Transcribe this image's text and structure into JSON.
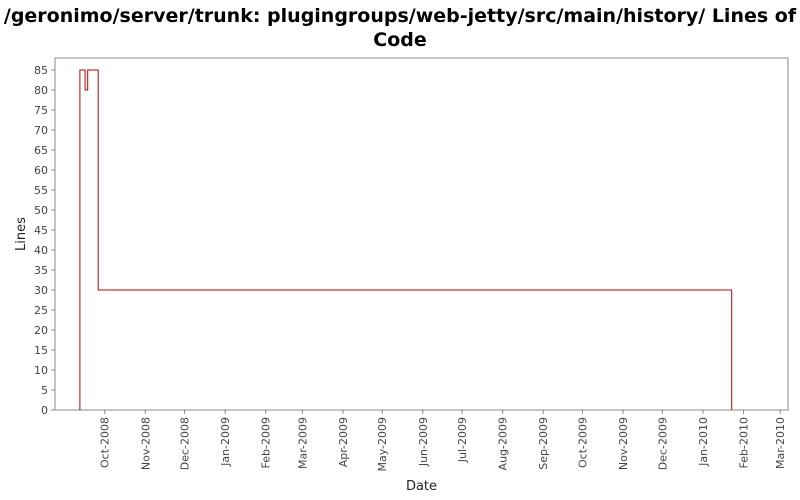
{
  "chart_data": {
    "type": "line",
    "title": "/geronimo/server/trunk: plugingroups/web-jetty/src/main/history/ Lines of Code",
    "xlabel": "Date",
    "ylabel": "Lines",
    "x_ticks": [
      "Oct-2008",
      "Nov-2008",
      "Dec-2008",
      "Jan-2009",
      "Feb-2009",
      "Mar-2009",
      "Apr-2009",
      "May-2009",
      "Jun-2009",
      "Jul-2009",
      "Aug-2009",
      "Sep-2009",
      "Oct-2009",
      "Nov-2009",
      "Dec-2009",
      "Jan-2010",
      "Feb-2010",
      "Mar-2010"
    ],
    "y_ticks": [
      0,
      5,
      10,
      15,
      20,
      25,
      30,
      35,
      40,
      45,
      50,
      55,
      60,
      65,
      70,
      75,
      80,
      85
    ],
    "ylim": [
      0,
      88
    ],
    "xlim": [
      "2008-08-24",
      "2010-03-07"
    ],
    "grid": false,
    "series": [
      {
        "color": "#bb0000",
        "points": [
          [
            "2008-09-12",
            0
          ],
          [
            "2008-09-12",
            85
          ],
          [
            "2008-09-16",
            85
          ],
          [
            "2008-09-16",
            80
          ],
          [
            "2008-09-18",
            80
          ],
          [
            "2008-09-18",
            85
          ],
          [
            "2008-09-26",
            85
          ],
          [
            "2008-09-26",
            30
          ],
          [
            "2010-01-23",
            30
          ],
          [
            "2010-01-23",
            0
          ]
        ]
      }
    ]
  }
}
